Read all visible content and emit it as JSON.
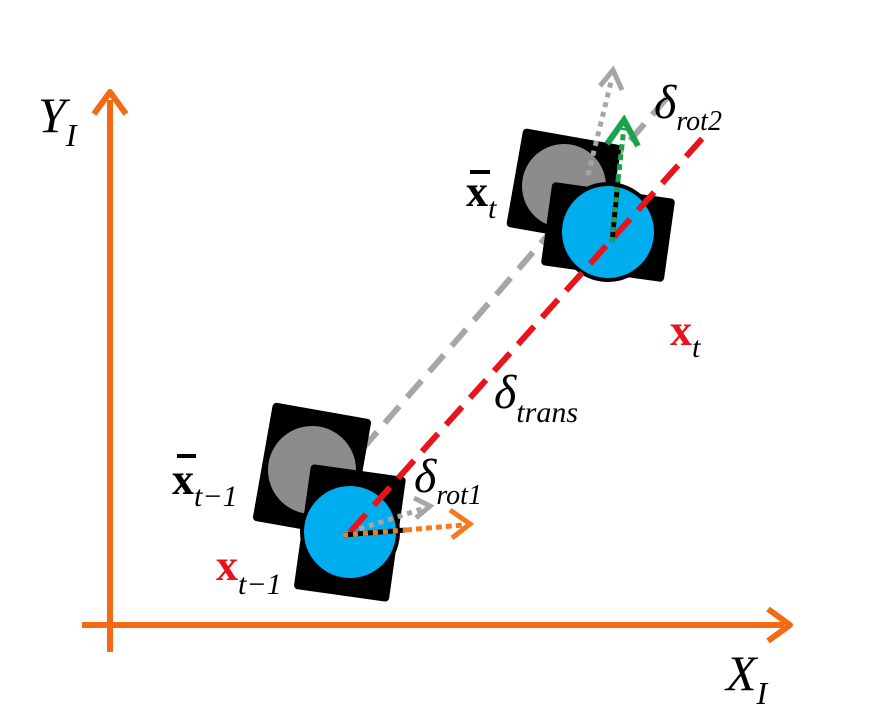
{
  "colors": {
    "axis": "#F46A12",
    "robot_body": "#000000",
    "robot_wheel_blue": "#00AEEF",
    "robot_wheel_gray": "#8C8C8C",
    "gray_path": "#A6A6A6",
    "red_path": "#E8141B",
    "orange_heading": "#F47A20",
    "green_heading": "#1BA34A",
    "label_red": "#E8141B"
  },
  "labels": {
    "y_axis": {
      "base": "Y",
      "sub": "I"
    },
    "x_axis": {
      "base": "X",
      "sub": "I"
    },
    "odom_prev": {
      "base": "x",
      "sub": "t−1"
    },
    "odom_curr": {
      "base": "x",
      "sub": "t"
    },
    "true_prev": {
      "base": "x",
      "sub": "t−1"
    },
    "true_curr": {
      "base": "x",
      "sub": "t"
    },
    "delta_rot1": {
      "base": "δ",
      "sub": "rot1"
    },
    "delta_rot2": {
      "base": "δ",
      "sub": "rot2"
    },
    "delta_trans": {
      "base": "δ",
      "sub": "trans"
    }
  }
}
